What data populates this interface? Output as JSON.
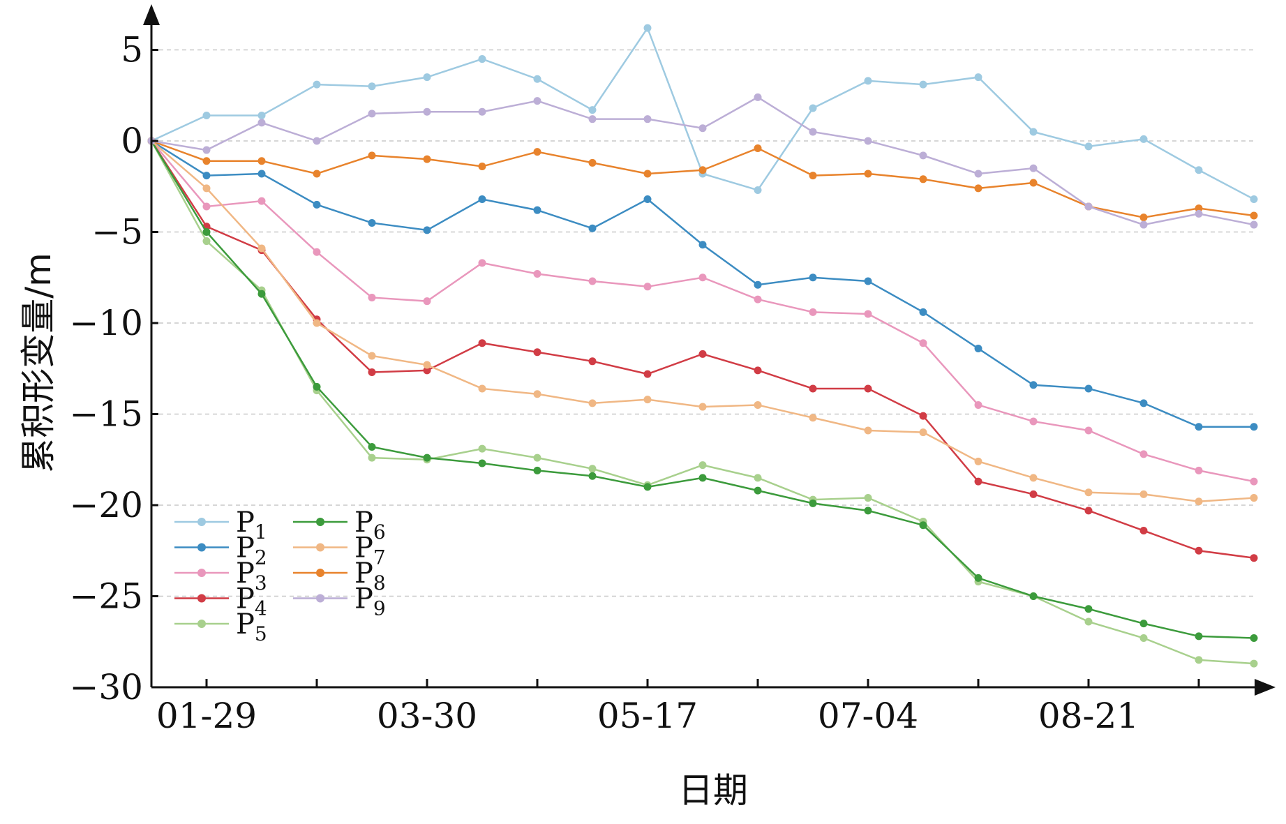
{
  "chart_data": {
    "type": "line",
    "xlabel": "日期",
    "ylabel": "累积形变量/m",
    "x_tick_labels": [
      "01-29",
      "03-30",
      "05-17",
      "07-04",
      "08-21"
    ],
    "x_tick_positions": [
      1,
      5,
      9,
      13,
      17
    ],
    "x_count": 21,
    "y_ticks": [
      5,
      0,
      -5,
      -10,
      -15,
      -20,
      -25,
      -30
    ],
    "y_tick_labels": [
      "5",
      "0",
      "−5",
      "−10",
      "−15",
      "−20",
      "−25",
      "−30"
    ],
    "ylim": [
      -30,
      6
    ],
    "grid": "horizontal dashed",
    "legend_position": "bottom-left",
    "series": [
      {
        "name": "P1",
        "legend_base": "P",
        "legend_sub": "1",
        "color": "#9ecae1",
        "values": [
          0,
          1.4,
          1.4,
          3.1,
          3.0,
          3.5,
          4.5,
          3.4,
          1.7,
          6.2,
          -1.8,
          -2.7,
          1.8,
          3.3,
          3.1,
          3.5,
          0.5,
          -0.3,
          0.1,
          -1.6,
          -3.2
        ]
      },
      {
        "name": "P2",
        "legend_base": "P",
        "legend_sub": "2",
        "color": "#3c8cc2",
        "values": [
          0,
          -1.9,
          -1.8,
          -3.5,
          -4.5,
          -4.9,
          -3.2,
          -3.8,
          -4.8,
          -3.2,
          -5.7,
          -7.9,
          -7.5,
          -7.7,
          -9.4,
          -11.4,
          -13.4,
          -13.6,
          -14.4,
          -15.7,
          -15.7
        ]
      },
      {
        "name": "P3",
        "legend_base": "P",
        "legend_sub": "3",
        "color": "#e997bc",
        "values": [
          0,
          -3.6,
          -3.3,
          -6.1,
          -8.6,
          -8.8,
          -6.7,
          -7.3,
          -7.7,
          -8.0,
          -7.5,
          -8.7,
          -9.4,
          -9.5,
          -11.1,
          -14.5,
          -15.4,
          -15.9,
          -17.2,
          -18.1,
          -18.7
        ]
      },
      {
        "name": "P4",
        "legend_base": "P",
        "legend_sub": "4",
        "color": "#d13c45",
        "values": [
          0,
          -4.7,
          -6.0,
          -9.8,
          -12.7,
          -12.6,
          -11.1,
          -11.6,
          -12.1,
          -12.8,
          -11.7,
          -12.6,
          -13.6,
          -13.6,
          -15.1,
          -18.7,
          -19.4,
          -20.3,
          -21.4,
          -22.5,
          -22.9
        ]
      },
      {
        "name": "P5",
        "legend_base": "P",
        "legend_sub": "5",
        "color": "#a8d08d",
        "values": [
          0,
          -5.5,
          -8.2,
          -13.7,
          -17.4,
          -17.5,
          -16.9,
          -17.4,
          -18.0,
          -18.9,
          -17.8,
          -18.5,
          -19.7,
          -19.6,
          -20.9,
          -24.2,
          -25.0,
          -26.4,
          -27.3,
          -28.5,
          -28.7
        ]
      },
      {
        "name": "P6",
        "legend_base": "P",
        "legend_sub": "6",
        "color": "#3c9b3c",
        "values": [
          0,
          -5.0,
          -8.4,
          -13.5,
          -16.8,
          -17.4,
          -17.7,
          -18.1,
          -18.4,
          -19.0,
          -18.5,
          -19.2,
          -19.9,
          -20.3,
          -21.1,
          -24.0,
          -25.0,
          -25.7,
          -26.5,
          -27.2,
          -27.3
        ]
      },
      {
        "name": "P7",
        "legend_base": "P",
        "legend_sub": "7",
        "color": "#f0b784",
        "values": [
          0,
          -2.6,
          -5.9,
          -10.0,
          -11.8,
          -12.3,
          -13.6,
          -13.9,
          -14.4,
          -14.2,
          -14.6,
          -14.5,
          -15.2,
          -15.9,
          -16.0,
          -17.6,
          -18.5,
          -19.3,
          -19.4,
          -19.8,
          -19.6
        ]
      },
      {
        "name": "P8",
        "legend_base": "P",
        "legend_sub": "8",
        "color": "#e8832c",
        "values": [
          0,
          -1.1,
          -1.1,
          -1.8,
          -0.8,
          -1.0,
          -1.4,
          -0.6,
          -1.2,
          -1.8,
          -1.6,
          -0.4,
          -1.9,
          -1.8,
          -2.1,
          -2.6,
          -2.3,
          -3.6,
          -4.2,
          -3.7,
          -4.1
        ]
      },
      {
        "name": "P9",
        "legend_base": "P",
        "legend_sub": "9",
        "color": "#bcaed6",
        "values": [
          0,
          -0.5,
          1.0,
          0.0,
          1.5,
          1.6,
          1.6,
          2.2,
          1.2,
          1.2,
          0.7,
          2.4,
          0.5,
          0.0,
          -0.8,
          -1.8,
          -1.5,
          -3.6,
          -4.6,
          -4.0,
          -4.6
        ]
      }
    ]
  }
}
